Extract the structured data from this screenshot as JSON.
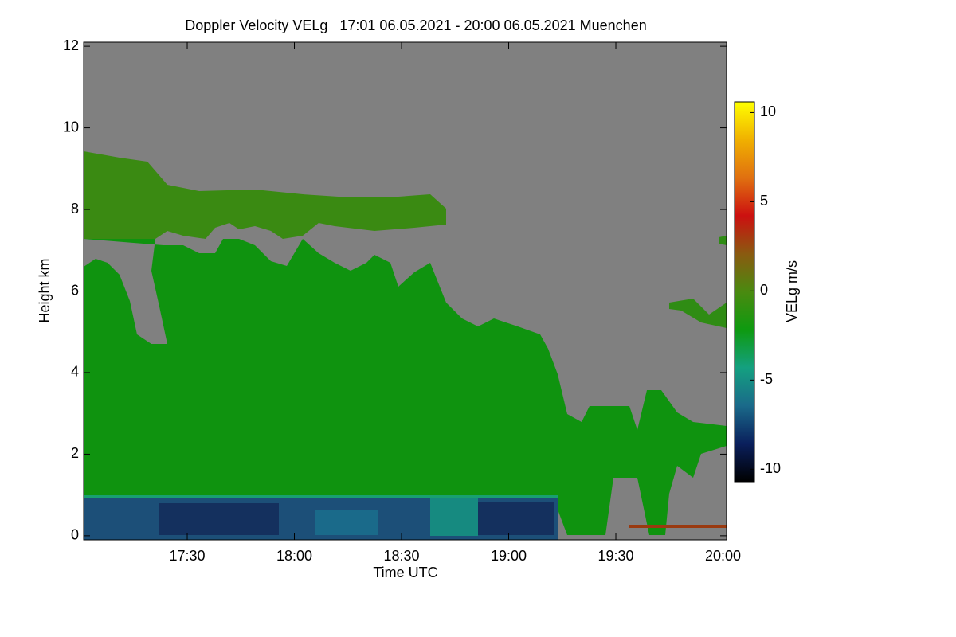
{
  "chart_data": {
    "type": "heatmap",
    "title": "Doppler Velocity VELg   17:01 06.05.2021 - 20:00 06.05.2021 Muenchen",
    "x_label": "Time UTC",
    "y_label": "Height km",
    "xlim": [
      1021,
      1201
    ],
    "xticks": [
      {
        "value": 1050,
        "label": "17:30"
      },
      {
        "value": 1080,
        "label": "18:00"
      },
      {
        "value": 1110,
        "label": "18:30"
      },
      {
        "value": 1140,
        "label": "19:00"
      },
      {
        "value": 1170,
        "label": "19:30"
      },
      {
        "value": 1200,
        "label": "20:00"
      }
    ],
    "ylim": [
      -0.1,
      12.1
    ],
    "yticks": [
      0,
      2,
      4,
      6,
      8,
      10,
      12
    ],
    "colorbar": {
      "label": "VELg m/s",
      "lim": [
        -10.7,
        10.6
      ],
      "ticks": [
        -10,
        -5,
        0,
        5,
        10
      ],
      "colors": [
        "#000000",
        "#0a1f5c",
        "#1a6a8a",
        "#14a080",
        "#0e9a10",
        "#4a8a10",
        "#8a5a10",
        "#cc1010",
        "#e07010",
        "#f0b000",
        "#ffff00"
      ]
    },
    "background_color": "#808080"
  }
}
